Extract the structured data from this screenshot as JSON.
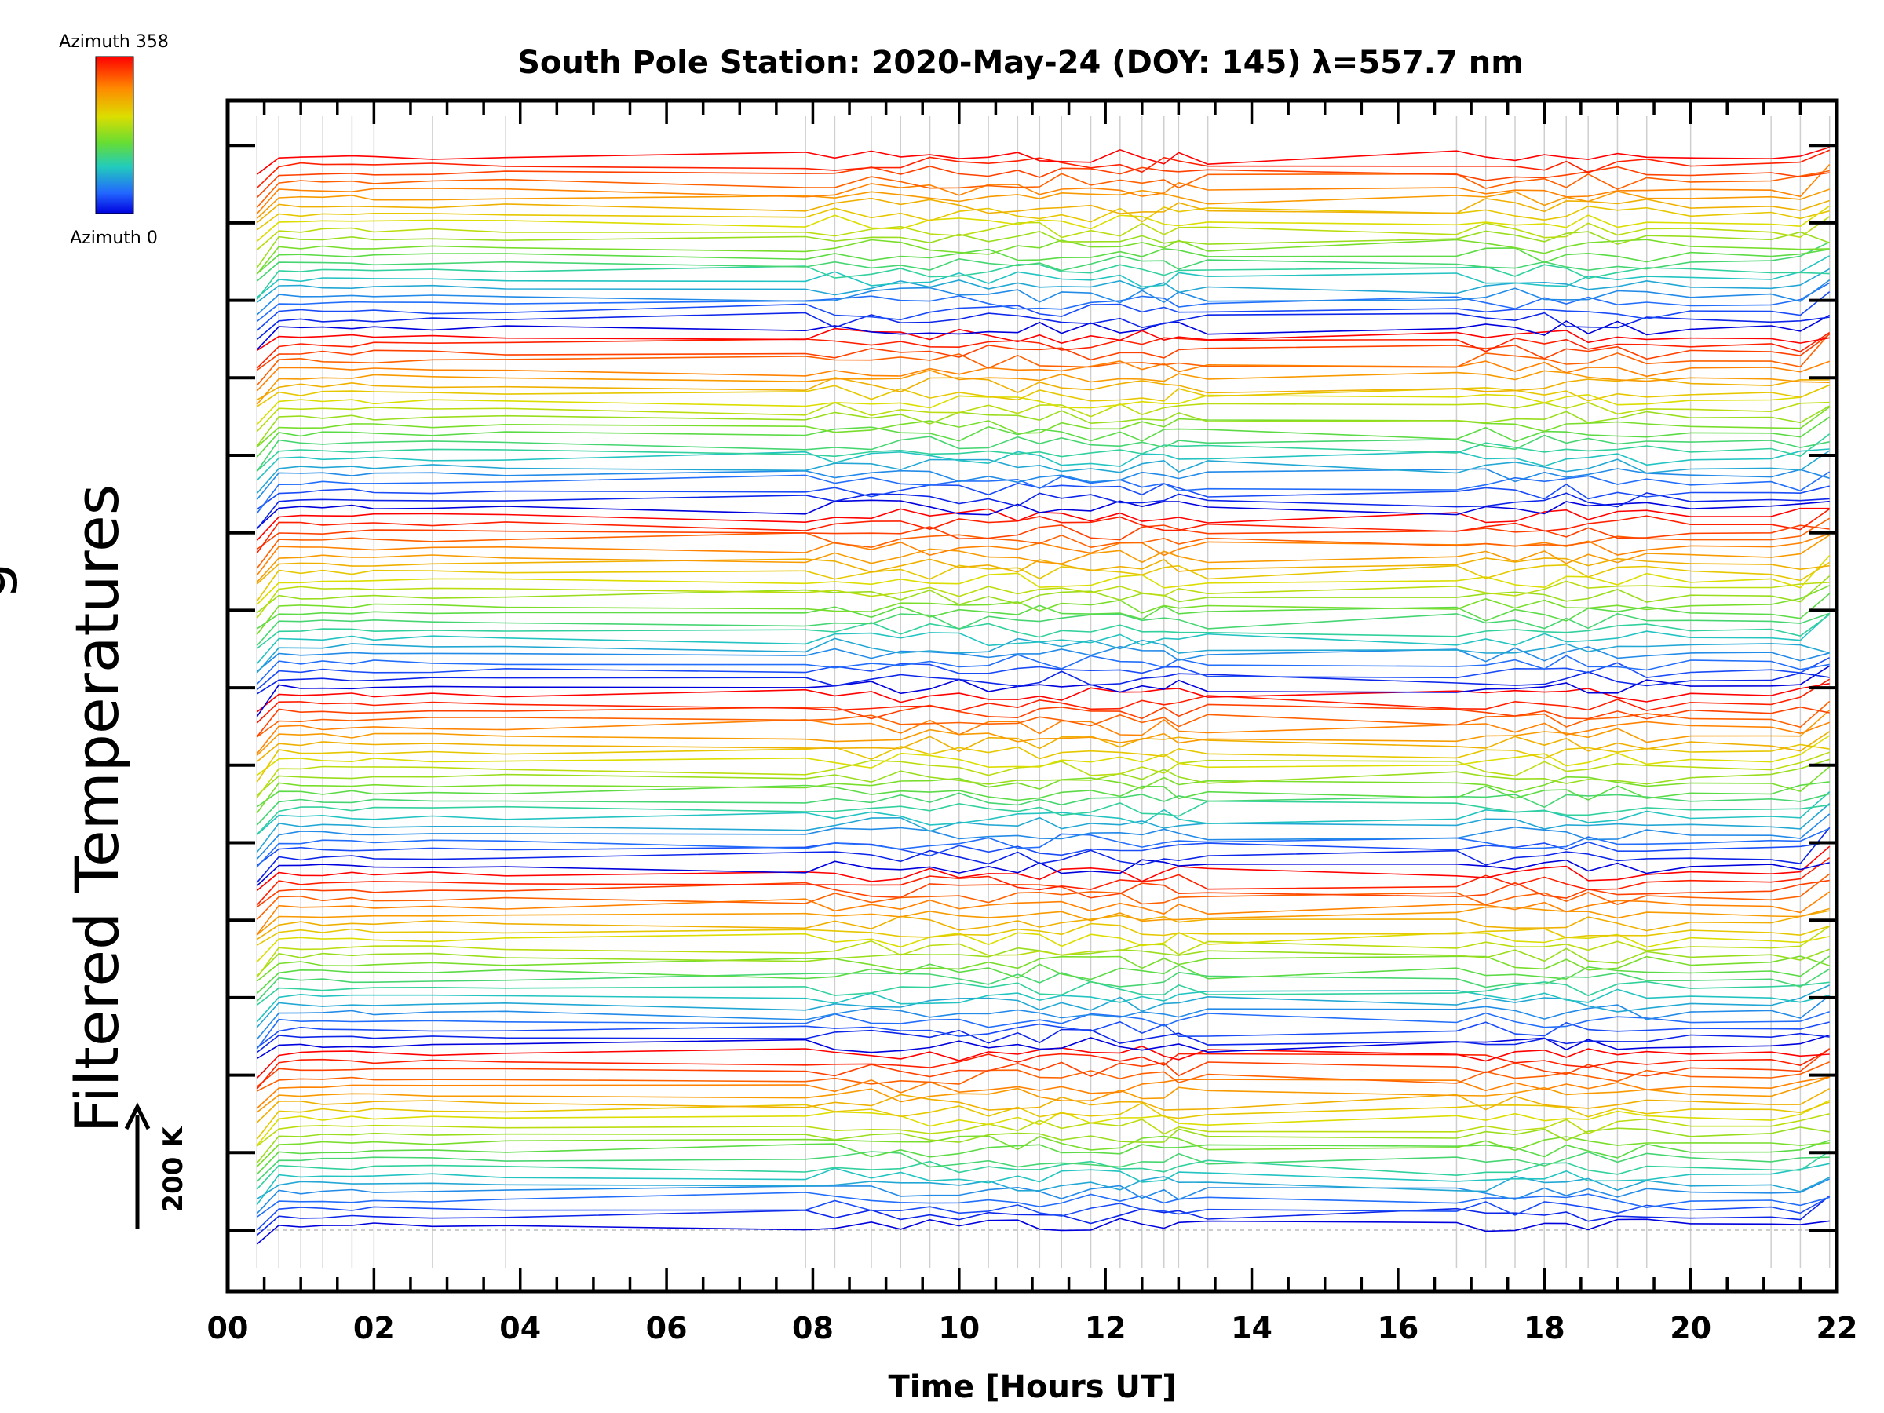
{
  "chart_data": {
    "type": "line",
    "title": "South Pole Station: 2020-May-24 (DOY: 145) λ=557.7 nm",
    "xlabel": "Time [Hours UT]",
    "ylabel": "Filtered Temperatures",
    "ylabel_partial": "g",
    "x_tick_labels": [
      "00",
      "02",
      "04",
      "06",
      "08",
      "10",
      "12",
      "14",
      "16",
      "18",
      "20",
      "22"
    ],
    "xlim": [
      0,
      22
    ],
    "y_major_ticks": 15,
    "scale_bar_label": "200 K",
    "colorbar": {
      "top_label": "Azimuth 358",
      "bottom_label": "Azimuth 0",
      "colors": [
        "#ff0000",
        "#ff8800",
        "#dddd00",
        "#66dd33",
        "#22ccbb",
        "#2266ff",
        "#0000dd"
      ]
    },
    "series_info": {
      "description": "Stacked offset filtered temperature traces, one per azimuth, colored by azimuth",
      "num_groups": 6,
      "traces_per_group": 22,
      "sample_times": [
        0.4,
        0.7,
        1.0,
        1.3,
        1.7,
        2.0,
        2.8,
        3.8,
        7.9,
        8.3,
        8.8,
        9.2,
        9.6,
        10.0,
        10.4,
        10.8,
        11.1,
        11.4,
        11.8,
        12.2,
        12.5,
        12.8,
        13.0,
        13.4,
        16.8,
        17.2,
        17.6,
        18.0,
        18.3,
        18.6,
        19.0,
        19.4,
        20.0,
        21.1,
        21.5,
        21.9
      ]
    }
  }
}
